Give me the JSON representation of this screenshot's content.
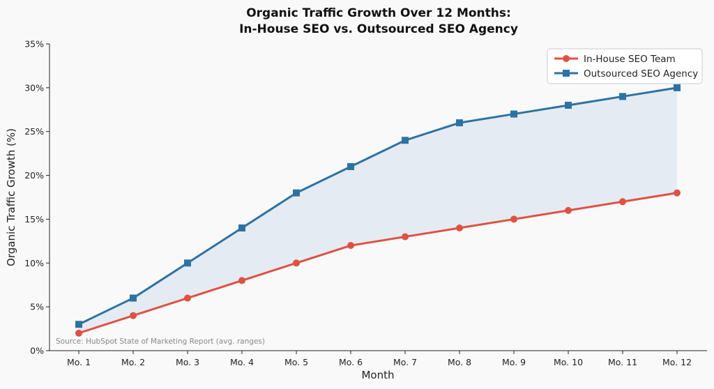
{
  "chart_data": {
    "type": "line",
    "title_line1": "Organic Traffic Growth Over 12 Months:",
    "title_line2": "In-House SEO vs. Outsourced SEO Agency",
    "xlabel": "Month",
    "ylabel": "Organic Traffic Growth (%)",
    "categories": [
      "Mo. 1",
      "Mo. 2",
      "Mo. 3",
      "Mo. 4",
      "Mo. 5",
      "Mo. 6",
      "Mo. 7",
      "Mo. 8",
      "Mo. 9",
      "Mo. 10",
      "Mo. 11",
      "Mo. 12"
    ],
    "ylim": [
      0,
      35
    ],
    "yticks": [
      0,
      5,
      10,
      15,
      20,
      25,
      30,
      35
    ],
    "ytick_labels": [
      "0%",
      "5%",
      "10%",
      "15%",
      "20%",
      "25%",
      "30%",
      "35%"
    ],
    "grid": false,
    "legend_position": "top-right",
    "fill_between": {
      "color": "#dde5ef"
    },
    "series": [
      {
        "name": "In-House SEO Team",
        "marker": "circle",
        "color": "#e05142",
        "values": [
          2,
          4,
          6,
          8,
          10,
          12,
          13,
          14,
          15,
          16,
          17,
          18
        ]
      },
      {
        "name": "Outsourced SEO Agency",
        "marker": "square",
        "color": "#2d72a4",
        "values": [
          3,
          6,
          10,
          14,
          18,
          21,
          24,
          26,
          27,
          28,
          29,
          30
        ]
      }
    ],
    "annotation": "Source: HubSpot State of Marketing Report (avg. ranges)"
  }
}
